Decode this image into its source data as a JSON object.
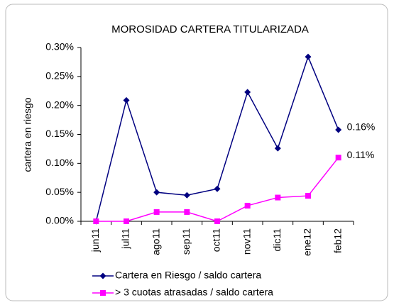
{
  "chart_data": {
    "type": "line",
    "title": "MOROSIDAD CARTERA TITULARIZADA",
    "y_label": "cartera en riesgo",
    "categories": [
      "jun11",
      "jul11",
      "ago11",
      "sep11",
      "oct11",
      "nov11",
      "dic11",
      "ene12",
      "feb12"
    ],
    "series": [
      {
        "name": "Cartera en Riesgo / saldo cartera",
        "color": "#000080",
        "marker": "diamond",
        "values": [
          0,
          0.209,
          0.05,
          0.045,
          0.056,
          0.223,
          0.126,
          0.284,
          0.158
        ],
        "value_labels": [
          null,
          null,
          null,
          null,
          null,
          null,
          null,
          null,
          "0.16%"
        ]
      },
      {
        "name": "> 3 cuotas atrasadas / saldo cartera",
        "color": "#ff00ff",
        "marker": "square",
        "values": [
          0,
          0,
          0.016,
          0.016,
          0,
          0.027,
          0.041,
          0.044,
          0.11
        ],
        "value_labels": [
          null,
          null,
          null,
          null,
          null,
          null,
          null,
          null,
          "0.11%"
        ]
      }
    ],
    "ylim": [
      0,
      0.3
    ],
    "yticks": [
      {
        "value": 0,
        "label": "0.00%"
      },
      {
        "value": 0.05,
        "label": "0.05%"
      },
      {
        "value": 0.1,
        "label": "0.10%"
      },
      {
        "value": 0.15,
        "label": "0.15%"
      },
      {
        "value": 0.2,
        "label": "0.20%"
      },
      {
        "value": 0.25,
        "label": "0.25%"
      },
      {
        "value": 0.3,
        "label": "0.30%"
      }
    ],
    "legend": "bottom"
  }
}
